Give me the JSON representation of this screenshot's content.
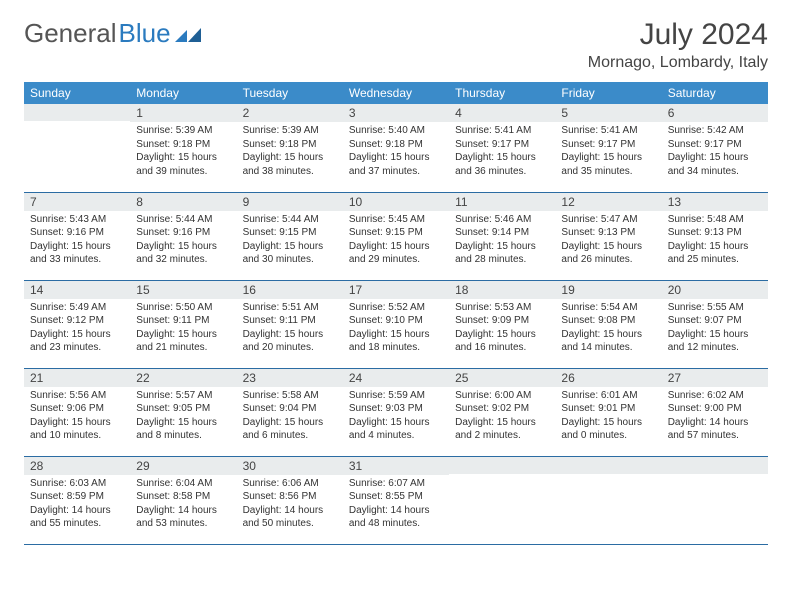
{
  "logo": {
    "text1": "General",
    "text2": "Blue"
  },
  "title": "July 2024",
  "location": "Mornago, Lombardy, Italy",
  "colors": {
    "header_bg": "#3b8bc9",
    "header_text": "#ffffff",
    "daynum_bg": "#e9eced",
    "row_border": "#2b6ca3",
    "logo_gray": "#555555",
    "logo_blue": "#2b7bbf"
  },
  "weekdays": [
    "Sunday",
    "Monday",
    "Tuesday",
    "Wednesday",
    "Thursday",
    "Friday",
    "Saturday"
  ],
  "weeks": [
    [
      {
        "n": "",
        "sr": "",
        "ss": "",
        "dl": ""
      },
      {
        "n": "1",
        "sr": "Sunrise: 5:39 AM",
        "ss": "Sunset: 9:18 PM",
        "dl": "Daylight: 15 hours and 39 minutes."
      },
      {
        "n": "2",
        "sr": "Sunrise: 5:39 AM",
        "ss": "Sunset: 9:18 PM",
        "dl": "Daylight: 15 hours and 38 minutes."
      },
      {
        "n": "3",
        "sr": "Sunrise: 5:40 AM",
        "ss": "Sunset: 9:18 PM",
        "dl": "Daylight: 15 hours and 37 minutes."
      },
      {
        "n": "4",
        "sr": "Sunrise: 5:41 AM",
        "ss": "Sunset: 9:17 PM",
        "dl": "Daylight: 15 hours and 36 minutes."
      },
      {
        "n": "5",
        "sr": "Sunrise: 5:41 AM",
        "ss": "Sunset: 9:17 PM",
        "dl": "Daylight: 15 hours and 35 minutes."
      },
      {
        "n": "6",
        "sr": "Sunrise: 5:42 AM",
        "ss": "Sunset: 9:17 PM",
        "dl": "Daylight: 15 hours and 34 minutes."
      }
    ],
    [
      {
        "n": "7",
        "sr": "Sunrise: 5:43 AM",
        "ss": "Sunset: 9:16 PM",
        "dl": "Daylight: 15 hours and 33 minutes."
      },
      {
        "n": "8",
        "sr": "Sunrise: 5:44 AM",
        "ss": "Sunset: 9:16 PM",
        "dl": "Daylight: 15 hours and 32 minutes."
      },
      {
        "n": "9",
        "sr": "Sunrise: 5:44 AM",
        "ss": "Sunset: 9:15 PM",
        "dl": "Daylight: 15 hours and 30 minutes."
      },
      {
        "n": "10",
        "sr": "Sunrise: 5:45 AM",
        "ss": "Sunset: 9:15 PM",
        "dl": "Daylight: 15 hours and 29 minutes."
      },
      {
        "n": "11",
        "sr": "Sunrise: 5:46 AM",
        "ss": "Sunset: 9:14 PM",
        "dl": "Daylight: 15 hours and 28 minutes."
      },
      {
        "n": "12",
        "sr": "Sunrise: 5:47 AM",
        "ss": "Sunset: 9:13 PM",
        "dl": "Daylight: 15 hours and 26 minutes."
      },
      {
        "n": "13",
        "sr": "Sunrise: 5:48 AM",
        "ss": "Sunset: 9:13 PM",
        "dl": "Daylight: 15 hours and 25 minutes."
      }
    ],
    [
      {
        "n": "14",
        "sr": "Sunrise: 5:49 AM",
        "ss": "Sunset: 9:12 PM",
        "dl": "Daylight: 15 hours and 23 minutes."
      },
      {
        "n": "15",
        "sr": "Sunrise: 5:50 AM",
        "ss": "Sunset: 9:11 PM",
        "dl": "Daylight: 15 hours and 21 minutes."
      },
      {
        "n": "16",
        "sr": "Sunrise: 5:51 AM",
        "ss": "Sunset: 9:11 PM",
        "dl": "Daylight: 15 hours and 20 minutes."
      },
      {
        "n": "17",
        "sr": "Sunrise: 5:52 AM",
        "ss": "Sunset: 9:10 PM",
        "dl": "Daylight: 15 hours and 18 minutes."
      },
      {
        "n": "18",
        "sr": "Sunrise: 5:53 AM",
        "ss": "Sunset: 9:09 PM",
        "dl": "Daylight: 15 hours and 16 minutes."
      },
      {
        "n": "19",
        "sr": "Sunrise: 5:54 AM",
        "ss": "Sunset: 9:08 PM",
        "dl": "Daylight: 15 hours and 14 minutes."
      },
      {
        "n": "20",
        "sr": "Sunrise: 5:55 AM",
        "ss": "Sunset: 9:07 PM",
        "dl": "Daylight: 15 hours and 12 minutes."
      }
    ],
    [
      {
        "n": "21",
        "sr": "Sunrise: 5:56 AM",
        "ss": "Sunset: 9:06 PM",
        "dl": "Daylight: 15 hours and 10 minutes."
      },
      {
        "n": "22",
        "sr": "Sunrise: 5:57 AM",
        "ss": "Sunset: 9:05 PM",
        "dl": "Daylight: 15 hours and 8 minutes."
      },
      {
        "n": "23",
        "sr": "Sunrise: 5:58 AM",
        "ss": "Sunset: 9:04 PM",
        "dl": "Daylight: 15 hours and 6 minutes."
      },
      {
        "n": "24",
        "sr": "Sunrise: 5:59 AM",
        "ss": "Sunset: 9:03 PM",
        "dl": "Daylight: 15 hours and 4 minutes."
      },
      {
        "n": "25",
        "sr": "Sunrise: 6:00 AM",
        "ss": "Sunset: 9:02 PM",
        "dl": "Daylight: 15 hours and 2 minutes."
      },
      {
        "n": "26",
        "sr": "Sunrise: 6:01 AM",
        "ss": "Sunset: 9:01 PM",
        "dl": "Daylight: 15 hours and 0 minutes."
      },
      {
        "n": "27",
        "sr": "Sunrise: 6:02 AM",
        "ss": "Sunset: 9:00 PM",
        "dl": "Daylight: 14 hours and 57 minutes."
      }
    ],
    [
      {
        "n": "28",
        "sr": "Sunrise: 6:03 AM",
        "ss": "Sunset: 8:59 PM",
        "dl": "Daylight: 14 hours and 55 minutes."
      },
      {
        "n": "29",
        "sr": "Sunrise: 6:04 AM",
        "ss": "Sunset: 8:58 PM",
        "dl": "Daylight: 14 hours and 53 minutes."
      },
      {
        "n": "30",
        "sr": "Sunrise: 6:06 AM",
        "ss": "Sunset: 8:56 PM",
        "dl": "Daylight: 14 hours and 50 minutes."
      },
      {
        "n": "31",
        "sr": "Sunrise: 6:07 AM",
        "ss": "Sunset: 8:55 PM",
        "dl": "Daylight: 14 hours and 48 minutes."
      },
      {
        "n": "",
        "sr": "",
        "ss": "",
        "dl": ""
      },
      {
        "n": "",
        "sr": "",
        "ss": "",
        "dl": ""
      },
      {
        "n": "",
        "sr": "",
        "ss": "",
        "dl": ""
      }
    ]
  ]
}
